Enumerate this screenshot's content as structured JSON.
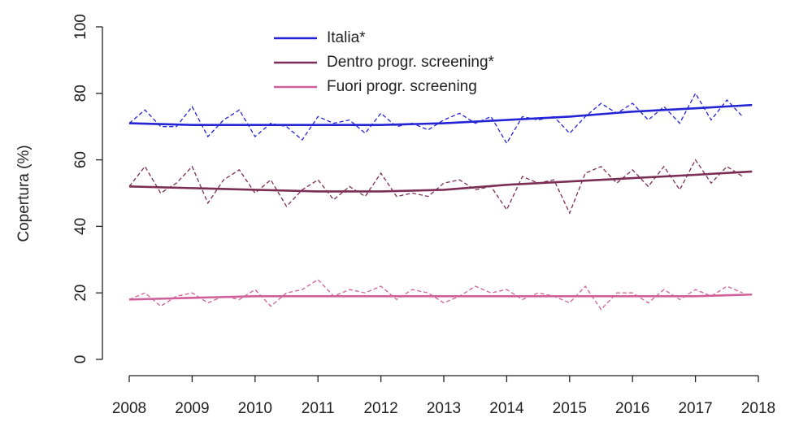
{
  "chart_data": {
    "type": "line",
    "ylabel": "Copertura (%)",
    "xlim": [
      2008,
      2018
    ],
    "xticks": [
      2008,
      2009,
      2010,
      2011,
      2012,
      2013,
      2014,
      2015,
      2016,
      2017,
      2018
    ],
    "ylim": [
      0,
      100
    ],
    "yticks": [
      0,
      20,
      40,
      60,
      80,
      100
    ],
    "legend": "top",
    "series": [
      {
        "name": "Italia*",
        "color": "#2424d4",
        "dashed": false,
        "x": [
          2008,
          2009,
          2010,
          2011,
          2012,
          2013,
          2014,
          2015,
          2016,
          2017,
          2017.9
        ],
        "values": [
          71,
          70.5,
          70.5,
          70.5,
          70.5,
          71,
          72,
          73,
          74.5,
          75.5,
          76.5
        ]
      },
      {
        "name": "Dentro progr. screening*",
        "color": "#7b2d55",
        "dashed": false,
        "x": [
          2008,
          2009,
          2010,
          2011,
          2012,
          2013,
          2014,
          2015,
          2016,
          2017,
          2017.9
        ],
        "values": [
          52,
          51.5,
          51,
          50.5,
          50.5,
          51,
          52.5,
          53.5,
          54.5,
          55.5,
          56.5
        ]
      },
      {
        "name": "Fuori progr. screening",
        "color": "#d0609a",
        "dashed": false,
        "x": [
          2008,
          2009,
          2010,
          2011,
          2012,
          2013,
          2014,
          2015,
          2016,
          2017,
          2017.9
        ],
        "values": [
          18,
          18.5,
          19,
          19,
          19,
          19,
          19,
          19,
          19,
          19,
          19.5
        ]
      },
      {
        "color": "#2424d4",
        "dashed": true,
        "x": [
          2008,
          2008.25,
          2008.5,
          2008.75,
          2009,
          2009.25,
          2009.5,
          2009.75,
          2010,
          2010.25,
          2010.5,
          2010.75,
          2011,
          2011.25,
          2011.5,
          2011.75,
          2012,
          2012.25,
          2012.5,
          2012.75,
          2013,
          2013.25,
          2013.5,
          2013.75,
          2014,
          2014.25,
          2014.5,
          2014.75,
          2015,
          2015.25,
          2015.5,
          2015.75,
          2016,
          2016.25,
          2016.5,
          2016.75,
          2017,
          2017.25,
          2017.5,
          2017.75
        ],
        "values": [
          71,
          75,
          70,
          70,
          76,
          67,
          72,
          75,
          67,
          71,
          70,
          66,
          73,
          71,
          72,
          68,
          74,
          70,
          71,
          69,
          72,
          74,
          71,
          73,
          65,
          73,
          72,
          73,
          68,
          73,
          77,
          74,
          77,
          72,
          76,
          71,
          80,
          72,
          78,
          73
        ]
      },
      {
        "color": "#7b2d55",
        "dashed": true,
        "x": [
          2008,
          2008.25,
          2008.5,
          2008.75,
          2009,
          2009.25,
          2009.5,
          2009.75,
          2010,
          2010.25,
          2010.5,
          2010.75,
          2011,
          2011.25,
          2011.5,
          2011.75,
          2012,
          2012.25,
          2012.5,
          2012.75,
          2013,
          2013.25,
          2013.5,
          2013.75,
          2014,
          2014.25,
          2014.5,
          2014.75,
          2015,
          2015.25,
          2015.5,
          2015.75,
          2016,
          2016.25,
          2016.5,
          2016.75,
          2017,
          2017.25,
          2017.5,
          2017.75
        ],
        "values": [
          52,
          58,
          50,
          53,
          58,
          47,
          54,
          57,
          50,
          54,
          46,
          51,
          54,
          48,
          52,
          49,
          56,
          49,
          50,
          49,
          53,
          54,
          51,
          52,
          45,
          55,
          53,
          54,
          44,
          56,
          58,
          53,
          57,
          52,
          58,
          51,
          60,
          53,
          58,
          55
        ]
      },
      {
        "color": "#d0609a",
        "dashed": true,
        "x": [
          2008,
          2008.25,
          2008.5,
          2008.75,
          2009,
          2009.25,
          2009.5,
          2009.75,
          2010,
          2010.25,
          2010.5,
          2010.75,
          2011,
          2011.25,
          2011.5,
          2011.75,
          2012,
          2012.25,
          2012.5,
          2012.75,
          2013,
          2013.25,
          2013.5,
          2013.75,
          2014,
          2014.25,
          2014.5,
          2014.75,
          2015,
          2015.25,
          2015.5,
          2015.75,
          2016,
          2016.25,
          2016.5,
          2016.75,
          2017,
          2017.25,
          2017.5,
          2017.75
        ],
        "values": [
          18,
          20,
          16,
          19,
          20,
          17,
          19,
          18,
          21,
          16,
          20,
          21,
          24,
          19,
          21,
          20,
          22,
          18,
          21,
          20,
          17,
          19,
          22,
          20,
          21,
          18,
          20,
          19,
          17,
          22,
          15,
          20,
          20,
          17,
          21,
          18,
          21,
          19,
          22,
          20
        ]
      }
    ]
  }
}
